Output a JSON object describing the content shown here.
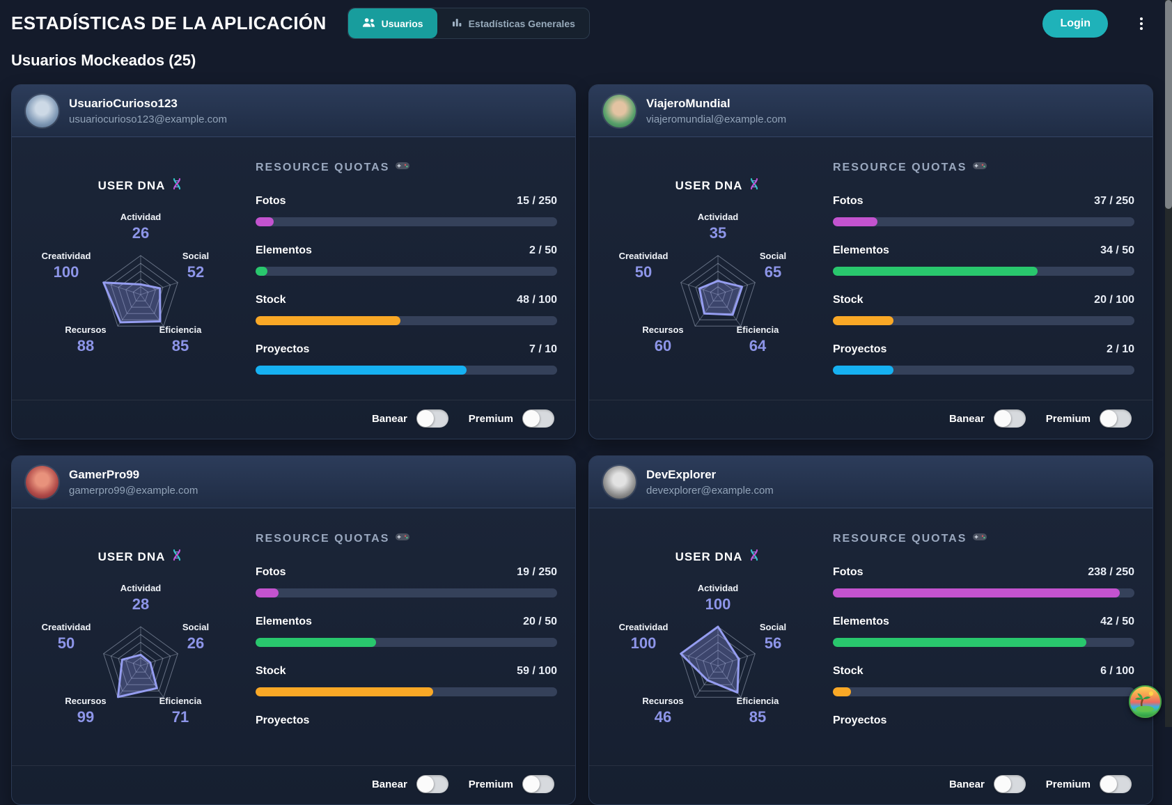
{
  "header": {
    "title": "ESTADÍSTICAS DE LA APLICACIÓN",
    "tabs": [
      {
        "label": "Usuarios",
        "icon": "users-icon",
        "active": true
      },
      {
        "label": "Estadísticas Generales",
        "icon": "bar-chart-icon",
        "active": false
      }
    ],
    "login_label": "Login",
    "menu_icon": "kebab-menu-icon"
  },
  "section_title": "Usuarios Mockeados (25)",
  "radar": {
    "title": "USER DNA",
    "icon": "dna-icon",
    "max": 100,
    "axes": [
      "Actividad",
      "Social",
      "Eficiencia",
      "Recursos",
      "Creatividad"
    ]
  },
  "quotas": {
    "title": "RESOURCE QUOTAS",
    "icon": "gamepad-icon"
  },
  "toggles": {
    "ban_label": "Banear",
    "premium_label": "Premium",
    "ban_on": false,
    "premium_on": false
  },
  "colors": {
    "accent_tab": "#189d9d",
    "accent_login": "#1fb2b9",
    "fotos": "#c353cf",
    "elementos": "#29c76d",
    "stock": "#f9a826",
    "proyectos": "#16b1f2",
    "radar_value": "#8d95e8",
    "radar_stroke": "#959df0"
  },
  "floating_button": {
    "icon": "island-icon"
  },
  "users": [
    {
      "username": "UsuarioCurioso123",
      "email": "usuariocurioso123@example.com",
      "avatar_colors": [
        "#cdd9e6",
        "#7f98b5",
        "#3f5878"
      ],
      "dna_values": [
        26,
        52,
        85,
        88,
        100
      ],
      "quota_rows": [
        {
          "label": "Fotos",
          "used": 15,
          "max": 250,
          "display": "15 / 250",
          "color": "#c353cf"
        },
        {
          "label": "Elementos",
          "used": 2,
          "max": 50,
          "display": "2 / 50",
          "color": "#29c76d"
        },
        {
          "label": "Stock",
          "used": 48,
          "max": 100,
          "display": "48 / 100",
          "color": "#f9a826"
        },
        {
          "label": "Proyectos",
          "used": 7,
          "max": 10,
          "display": "7 / 10",
          "color": "#16b1f2"
        }
      ]
    },
    {
      "username": "ViajeroMundial",
      "email": "viajeromundial@example.com",
      "avatar_colors": [
        "#e3c3a2",
        "#58a06b",
        "#2a6b44"
      ],
      "dna_values": [
        35,
        65,
        64,
        60,
        50
      ],
      "quota_rows": [
        {
          "label": "Fotos",
          "used": 37,
          "max": 250,
          "display": "37 / 250",
          "color": "#c353cf"
        },
        {
          "label": "Elementos",
          "used": 34,
          "max": 50,
          "display": "34 / 50",
          "color": "#29c76d"
        },
        {
          "label": "Stock",
          "used": 20,
          "max": 100,
          "display": "20 / 100",
          "color": "#f9a826"
        },
        {
          "label": "Proyectos",
          "used": 2,
          "max": 10,
          "display": "2 / 10",
          "color": "#16b1f2"
        }
      ]
    },
    {
      "username": "GamerPro99",
      "email": "gamerpro99@example.com",
      "avatar_colors": [
        "#e8927c",
        "#b04a48",
        "#5f2433"
      ],
      "dna_values": [
        28,
        26,
        71,
        99,
        50
      ],
      "quota_rows": [
        {
          "label": "Fotos",
          "used": 19,
          "max": 250,
          "display": "19 / 250",
          "color": "#c353cf"
        },
        {
          "label": "Elementos",
          "used": 20,
          "max": 50,
          "display": "20 / 50",
          "color": "#29c76d"
        },
        {
          "label": "Stock",
          "used": 59,
          "max": 100,
          "display": "59 / 100",
          "color": "#f9a826"
        },
        {
          "label": "Proyectos",
          "used": null,
          "max": null,
          "display": "",
          "color": null
        }
      ]
    },
    {
      "username": "DevExplorer",
      "email": "devexplorer@example.com",
      "avatar_colors": [
        "#e2e2e2",
        "#8f8f8f",
        "#3e3e3e"
      ],
      "dna_values": [
        100,
        56,
        85,
        46,
        100
      ],
      "quota_rows": [
        {
          "label": "Fotos",
          "used": 238,
          "max": 250,
          "display": "238 / 250",
          "color": "#c353cf"
        },
        {
          "label": "Elementos",
          "used": 42,
          "max": 50,
          "display": "42 / 50",
          "color": "#29c76d"
        },
        {
          "label": "Stock",
          "used": 6,
          "max": 100,
          "display": "6 / 100",
          "color": "#f9a826"
        },
        {
          "label": "Proyectos",
          "used": null,
          "max": null,
          "display": "",
          "color": null
        }
      ]
    }
  ],
  "chart_data": [
    {
      "type": "radar",
      "categories": [
        "Actividad",
        "Social",
        "Eficiencia",
        "Recursos",
        "Creatividad"
      ],
      "values": [
        26,
        52,
        85,
        88,
        100
      ],
      "title": "USER DNA — UsuarioCurioso123",
      "range": [
        0,
        100
      ]
    },
    {
      "type": "radar",
      "categories": [
        "Actividad",
        "Social",
        "Eficiencia",
        "Recursos",
        "Creatividad"
      ],
      "values": [
        35,
        65,
        64,
        60,
        50
      ],
      "title": "USER DNA — ViajeroMundial",
      "range": [
        0,
        100
      ]
    },
    {
      "type": "radar",
      "categories": [
        "Actividad",
        "Social",
        "Eficiencia",
        "Recursos",
        "Creatividad"
      ],
      "values": [
        28,
        26,
        71,
        99,
        50
      ],
      "title": "USER DNA — GamerPro99",
      "range": [
        0,
        100
      ]
    },
    {
      "type": "radar",
      "categories": [
        "Actividad",
        "Social",
        "Eficiencia",
        "Recursos",
        "Creatividad"
      ],
      "values": [
        100,
        56,
        85,
        46,
        100
      ],
      "title": "USER DNA — DevExplorer",
      "range": [
        0,
        100
      ]
    }
  ]
}
